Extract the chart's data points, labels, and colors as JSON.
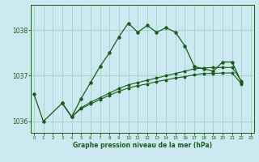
{
  "xlabel": "Graphe pression niveau de la mer (hPa)",
  "bg_color": "#cce8f0",
  "grid_color": "#99ccbb",
  "line_color": "#1a5c1a",
  "hours": [
    0,
    1,
    2,
    3,
    4,
    5,
    6,
    7,
    8,
    9,
    10,
    11,
    12,
    13,
    14,
    15,
    16,
    17,
    18,
    19,
    20,
    21,
    22,
    23
  ],
  "series1": [
    1036.6,
    1036.0,
    null,
    1036.4,
    1036.1,
    1036.5,
    1036.85,
    1037.2,
    1037.5,
    1037.85,
    1038.15,
    1037.95,
    1038.1,
    1037.95,
    1038.05,
    1037.95,
    1037.65,
    1037.2,
    1037.15,
    1037.1,
    1037.3,
    1037.3,
    1036.85,
    null
  ],
  "series2": [
    null,
    null,
    null,
    1036.4,
    1036.1,
    1036.3,
    1036.42,
    1036.52,
    1036.62,
    1036.72,
    1036.8,
    1036.85,
    1036.9,
    1036.95,
    1037.0,
    1037.05,
    1037.1,
    1037.15,
    1037.17,
    1037.18,
    1037.18,
    1037.18,
    1036.88,
    null
  ],
  "series3": [
    null,
    null,
    null,
    1036.4,
    1036.1,
    1036.28,
    1036.38,
    1036.48,
    1036.57,
    1036.66,
    1036.73,
    1036.78,
    1036.82,
    1036.87,
    1036.91,
    1036.95,
    1036.98,
    1037.02,
    1037.05,
    1037.05,
    1037.06,
    1037.06,
    1036.82,
    null
  ],
  "ylim": [
    1035.75,
    1038.55
  ],
  "yticks": [
    1036,
    1037,
    1038
  ],
  "xlim": [
    -0.3,
    23.3
  ]
}
